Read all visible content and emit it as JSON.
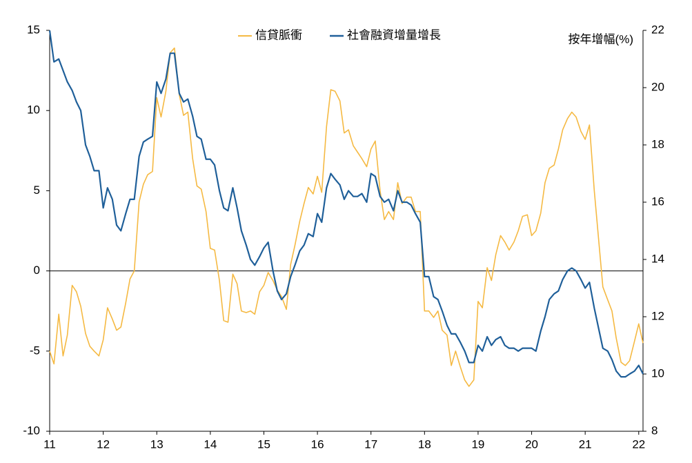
{
  "chart_data": {
    "type": "line",
    "legend": "top",
    "y_axis_label": "按年增幅(%)",
    "x": [
      11.0,
      11.08,
      11.17,
      11.25,
      11.33,
      11.42,
      11.5,
      11.58,
      11.67,
      11.75,
      11.83,
      11.92,
      12.0,
      12.08,
      12.17,
      12.25,
      12.33,
      12.42,
      12.5,
      12.58,
      12.67,
      12.75,
      12.83,
      12.92,
      13.0,
      13.08,
      13.17,
      13.25,
      13.33,
      13.42,
      13.5,
      13.58,
      13.67,
      13.75,
      13.83,
      13.92,
      14.0,
      14.08,
      14.17,
      14.25,
      14.33,
      14.42,
      14.5,
      14.58,
      14.67,
      14.75,
      14.83,
      14.92,
      15.0,
      15.08,
      15.17,
      15.25,
      15.33,
      15.42,
      15.5,
      15.58,
      15.67,
      15.75,
      15.83,
      15.92,
      16.0,
      16.08,
      16.17,
      16.25,
      16.33,
      16.42,
      16.5,
      16.58,
      16.67,
      16.75,
      16.83,
      16.92,
      17.0,
      17.08,
      17.17,
      17.25,
      17.33,
      17.42,
      17.5,
      17.58,
      17.67,
      17.75,
      17.83,
      17.92,
      18.0,
      18.08,
      18.17,
      18.25,
      18.33,
      18.42,
      18.5,
      18.58,
      18.67,
      18.75,
      18.83,
      18.92,
      19.0,
      19.08,
      19.17,
      19.25,
      19.33,
      19.42,
      19.5,
      19.58,
      19.67,
      19.75,
      19.83,
      19.92,
      20.0,
      20.08,
      20.17,
      20.25,
      20.33,
      20.42,
      20.5,
      20.58,
      20.67,
      20.75,
      20.83,
      20.92,
      21.0,
      21.08,
      21.17,
      21.25,
      21.33,
      21.42,
      21.5,
      21.58,
      21.67,
      21.75,
      21.83,
      21.92,
      22.0,
      22.08
    ],
    "series": [
      {
        "name": "信貸脈衝",
        "color": "#f5b942",
        "axis": "y",
        "values": [
          -5.0,
          -5.8,
          -2.7,
          -5.3,
          -4.0,
          -0.9,
          -1.3,
          -2.2,
          -3.9,
          -4.7,
          -5.0,
          -5.3,
          -4.3,
          -2.3,
          -3.0,
          -3.7,
          -3.5,
          -2.0,
          -0.5,
          0.0,
          4.3,
          5.4,
          6.0,
          6.2,
          10.8,
          9.6,
          11.2,
          13.6,
          13.9,
          11.0,
          9.7,
          9.9,
          7.0,
          5.3,
          5.1,
          3.7,
          1.4,
          1.3,
          -0.6,
          -3.1,
          -3.2,
          -0.2,
          -0.8,
          -2.5,
          -2.6,
          -2.5,
          -2.7,
          -1.3,
          -0.9,
          -0.1,
          -0.6,
          -1.2,
          -1.6,
          -2.4,
          0.4,
          1.6,
          3.1,
          4.2,
          5.2,
          4.8,
          5.9,
          4.9,
          9.0,
          11.3,
          11.2,
          10.6,
          8.6,
          8.8,
          7.8,
          7.4,
          7.0,
          6.5,
          7.6,
          8.1,
          5.0,
          3.2,
          3.7,
          3.2,
          5.5,
          4.2,
          4.6,
          4.6,
          3.7,
          3.7,
          -2.5,
          -2.5,
          -2.9,
          -2.5,
          -3.7,
          -4.0,
          -5.9,
          -5.0,
          -6.0,
          -6.8,
          -7.2,
          -6.8,
          -1.9,
          -2.3,
          0.2,
          -0.6,
          1.0,
          2.2,
          1.8,
          1.3,
          1.8,
          2.5,
          3.4,
          3.5,
          2.2,
          2.5,
          3.6,
          5.5,
          6.4,
          6.6,
          7.6,
          8.8,
          9.5,
          9.9,
          9.6,
          8.7,
          8.2,
          9.1,
          5.0,
          2.0,
          -1.0,
          -1.8,
          -2.5,
          -4.2,
          -5.7,
          -5.9,
          -5.6,
          -4.4,
          -3.3,
          -4.5
        ]
      },
      {
        "name": "社會融資增量增長",
        "color": "#1f5f99",
        "axis": "y2",
        "values": [
          22.0,
          20.9,
          21.0,
          20.6,
          20.2,
          19.9,
          19.5,
          19.2,
          18.0,
          17.6,
          17.1,
          17.1,
          15.8,
          16.5,
          16.1,
          15.2,
          15.0,
          15.6,
          16.1,
          16.1,
          17.6,
          18.1,
          18.2,
          18.3,
          20.2,
          19.8,
          20.3,
          21.2,
          21.2,
          19.8,
          19.5,
          19.6,
          19.0,
          18.3,
          18.2,
          17.5,
          17.5,
          17.3,
          16.4,
          15.8,
          15.7,
          16.5,
          15.8,
          15.0,
          14.5,
          14.0,
          13.8,
          14.1,
          14.4,
          14.6,
          13.6,
          12.9,
          12.6,
          12.8,
          13.4,
          13.8,
          14.3,
          14.5,
          14.9,
          14.8,
          15.6,
          15.3,
          16.5,
          17.0,
          16.8,
          16.6,
          16.1,
          16.4,
          16.2,
          16.2,
          16.3,
          16.0,
          17.0,
          16.9,
          16.2,
          16.0,
          16.1,
          15.7,
          16.4,
          16.0,
          16.0,
          15.9,
          15.6,
          15.3,
          13.4,
          13.4,
          12.7,
          12.6,
          12.2,
          11.7,
          11.4,
          11.4,
          11.1,
          10.8,
          10.4,
          10.4,
          11.0,
          10.8,
          11.3,
          11.0,
          11.2,
          11.3,
          11.0,
          10.9,
          10.9,
          10.8,
          10.9,
          10.9,
          10.9,
          10.8,
          11.5,
          12.0,
          12.6,
          12.8,
          12.9,
          13.3,
          13.6,
          13.7,
          13.6,
          13.3,
          13.0,
          13.2,
          12.3,
          11.6,
          10.9,
          10.8,
          10.5,
          10.1,
          9.9,
          9.9,
          10.0,
          10.1,
          10.3,
          10.0
        ]
      }
    ],
    "xlim": [
      11,
      22.08
    ],
    "xticks": [
      11,
      12,
      13,
      14,
      15,
      16,
      17,
      18,
      19,
      20,
      21,
      22
    ],
    "ylim": [
      -10,
      15
    ],
    "yticks": [
      -10,
      -5,
      0,
      5,
      10,
      15
    ],
    "y2lim": [
      8,
      22
    ],
    "y2ticks": [
      8,
      10,
      12,
      14,
      16,
      18,
      20,
      22
    ]
  }
}
